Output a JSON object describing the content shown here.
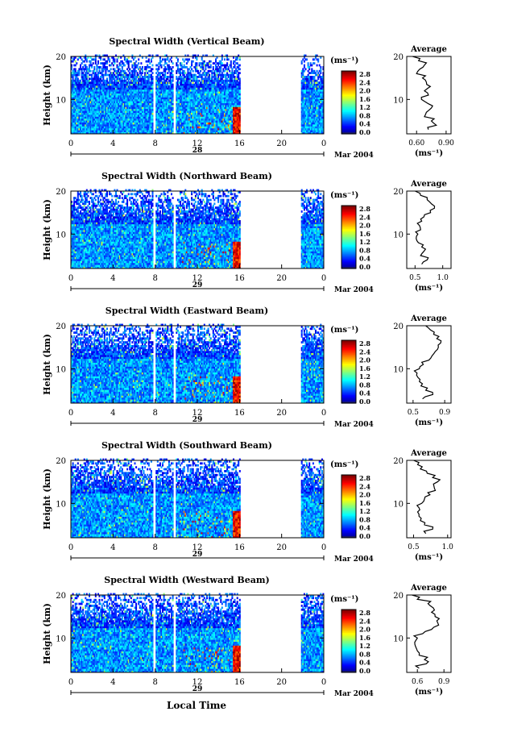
{
  "figure": {
    "xaxis_label": "Local Time",
    "date_label": "Mar 2004",
    "colorbar_unit": "(ms⁻¹)",
    "colorbar_ticks": [
      "2.8",
      "2.4",
      "2.0",
      "1.6",
      "1.2",
      "0.8",
      "0.4",
      "0.0"
    ],
    "average_title": "Average",
    "average_unit": "(ms⁻¹)"
  },
  "chart_data": [
    {
      "type": "heatmap",
      "title": "Spectral Width (Vertical Beam)",
      "ylabel": "Height (km)",
      "xlabel": "Local Time",
      "x_ticks": [
        "0",
        "4",
        "8",
        "12",
        "16",
        "20",
        "0"
      ],
      "x_range": [
        0,
        24
      ],
      "day_label": "28",
      "y_ticks": [
        "10",
        "20"
      ],
      "y_range": [
        2,
        20
      ],
      "value_range": [
        0.0,
        3.0
      ],
      "data_gaps_hours": [
        [
          7.8,
          8.0
        ],
        [
          9.7,
          9.9
        ],
        [
          16.0,
          21.8
        ]
      ],
      "profile": {
        "title": "Average",
        "x_ticks": [
          "0.60",
          "0.90"
        ],
        "x_range": [
          0.5,
          0.95
        ],
        "heights": [
          3,
          4,
          5,
          6,
          7,
          8,
          9,
          10,
          11,
          12,
          13,
          14,
          15,
          16,
          17,
          18,
          19,
          20
        ],
        "values": [
          0.72,
          0.8,
          0.75,
          0.68,
          0.7,
          0.75,
          0.72,
          0.65,
          0.72,
          0.68,
          0.74,
          0.7,
          0.66,
          0.6,
          0.63,
          0.68,
          0.62,
          0.56
        ]
      }
    },
    {
      "type": "heatmap",
      "title": "Spectral Width (Northward Beam)",
      "ylabel": "Height (km)",
      "xlabel": "Local Time",
      "x_ticks": [
        "0",
        "4",
        "8",
        "12",
        "16",
        "20",
        "0"
      ],
      "x_range": [
        0,
        24
      ],
      "day_label": "29",
      "y_ticks": [
        "10",
        "20"
      ],
      "y_range": [
        2,
        20
      ],
      "value_range": [
        0.0,
        3.0
      ],
      "data_gaps_hours": [
        [
          7.8,
          8.0
        ],
        [
          9.7,
          9.9
        ],
        [
          16.0,
          21.8
        ]
      ],
      "profile": {
        "title": "Average",
        "x_ticks": [
          "0.5",
          "1.0"
        ],
        "x_range": [
          0.35,
          1.15
        ],
        "heights": [
          3,
          4,
          5,
          6,
          7,
          8,
          9,
          10,
          11,
          12,
          13,
          14,
          15,
          16,
          17,
          18,
          19,
          20
        ],
        "values": [
          0.62,
          0.72,
          0.6,
          0.66,
          0.62,
          0.56,
          0.52,
          0.55,
          0.6,
          0.58,
          0.62,
          0.66,
          0.78,
          0.85,
          0.8,
          0.72,
          0.6,
          0.5
        ]
      }
    },
    {
      "type": "heatmap",
      "title": "Spectral Width (Eastward Beam)",
      "ylabel": "Height (km)",
      "xlabel": "Local Time",
      "x_ticks": [
        "0",
        "4",
        "8",
        "12",
        "16",
        "20",
        "0"
      ],
      "x_range": [
        0,
        24
      ],
      "day_label": "29",
      "y_ticks": [
        "10",
        "20"
      ],
      "y_range": [
        2,
        20
      ],
      "value_range": [
        0.0,
        3.0
      ],
      "data_gaps_hours": [
        [
          7.8,
          8.0
        ],
        [
          9.7,
          9.9
        ],
        [
          16.0,
          21.8
        ]
      ],
      "profile": {
        "title": "Average",
        "x_ticks": [
          "0.5",
          "0.9"
        ],
        "x_range": [
          0.42,
          0.98
        ],
        "heights": [
          3,
          4,
          5,
          6,
          7,
          8,
          9,
          10,
          11,
          12,
          13,
          14,
          15,
          16,
          17,
          18,
          19,
          20
        ],
        "values": [
          0.62,
          0.75,
          0.66,
          0.6,
          0.58,
          0.56,
          0.55,
          0.58,
          0.63,
          0.7,
          0.74,
          0.78,
          0.82,
          0.85,
          0.8,
          0.76,
          0.72,
          0.66
        ]
      }
    },
    {
      "type": "heatmap",
      "title": "Spectral Width (Southward Beam)",
      "ylabel": "Height (km)",
      "xlabel": "Local Time",
      "x_ticks": [
        "0",
        "4",
        "8",
        "12",
        "16",
        "20",
        "0"
      ],
      "x_range": [
        0,
        24
      ],
      "day_label": "29",
      "y_ticks": [
        "10",
        "20"
      ],
      "y_range": [
        2,
        20
      ],
      "value_range": [
        0.0,
        3.0
      ],
      "data_gaps_hours": [
        [
          7.8,
          8.0
        ],
        [
          9.7,
          9.9
        ],
        [
          16.0,
          21.8
        ]
      ],
      "profile": {
        "title": "Average",
        "x_ticks": [
          "0.5",
          "1.0"
        ],
        "x_range": [
          0.4,
          1.05
        ],
        "heights": [
          3,
          4,
          5,
          6,
          7,
          8,
          9,
          10,
          11,
          12,
          13,
          14,
          15,
          16,
          17,
          18,
          19,
          20
        ],
        "values": [
          0.68,
          0.78,
          0.66,
          0.6,
          0.58,
          0.56,
          0.58,
          0.62,
          0.66,
          0.74,
          0.82,
          0.8,
          0.85,
          0.78,
          0.7,
          0.6,
          0.56,
          0.5
        ]
      }
    },
    {
      "type": "heatmap",
      "title": "Spectral Width (Westward Beam)",
      "ylabel": "Height (km)",
      "xlabel": "Local Time",
      "x_ticks": [
        "0",
        "4",
        "8",
        "12",
        "16",
        "20",
        "0"
      ],
      "x_range": [
        0,
        24
      ],
      "day_label": "29",
      "y_ticks": [
        "10",
        "20"
      ],
      "y_range": [
        2,
        20
      ],
      "value_range": [
        0.0,
        3.0
      ],
      "data_gaps_hours": [
        [
          7.8,
          8.0
        ],
        [
          9.7,
          9.9
        ],
        [
          16.0,
          21.8
        ]
      ],
      "profile": {
        "title": "Average",
        "x_ticks": [
          "0.6",
          "0.9"
        ],
        "x_range": [
          0.48,
          0.98
        ],
        "heights": [
          3,
          4,
          5,
          6,
          7,
          8,
          9,
          10,
          11,
          12,
          13,
          14,
          15,
          16,
          17,
          18,
          19,
          20
        ],
        "values": [
          0.62,
          0.7,
          0.68,
          0.62,
          0.6,
          0.58,
          0.57,
          0.6,
          0.66,
          0.76,
          0.84,
          0.82,
          0.8,
          0.76,
          0.78,
          0.72,
          0.6,
          0.54
        ]
      }
    }
  ]
}
